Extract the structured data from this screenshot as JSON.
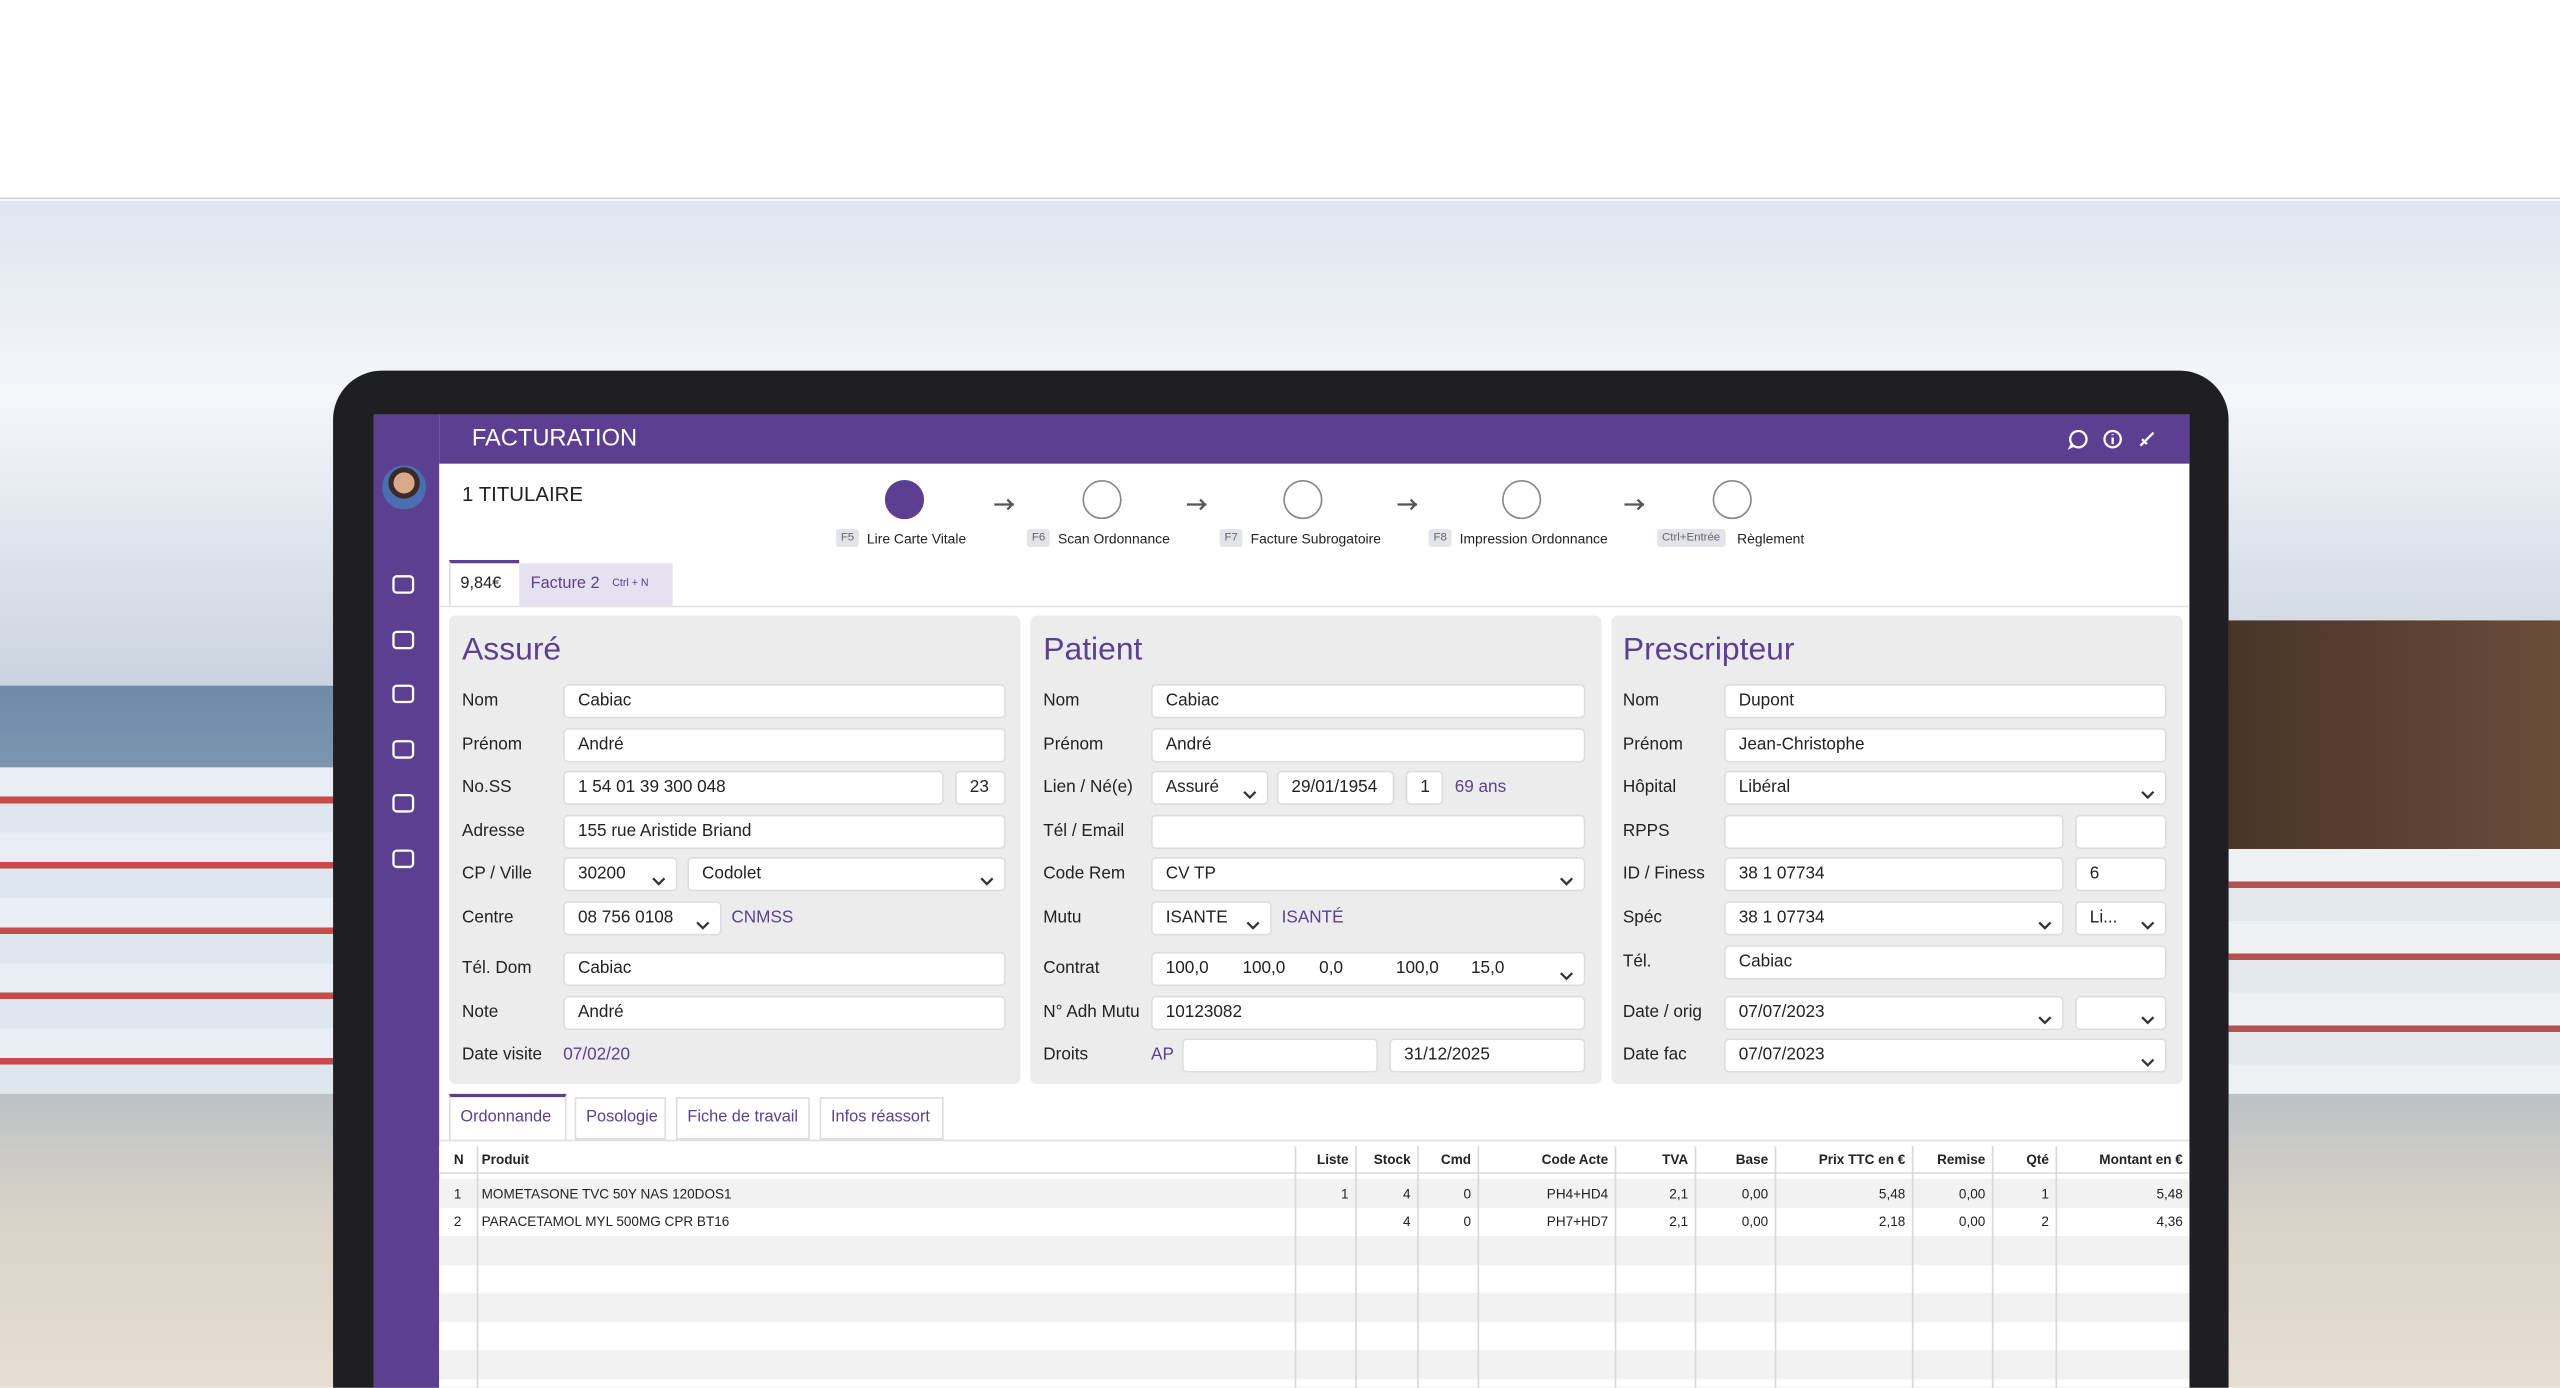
{
  "header": {
    "title": "FACTURATION"
  },
  "titulaire": "1 TITULAIRE",
  "steps": [
    {
      "key": "F5",
      "label": "Lire Carte Vitale"
    },
    {
      "key": "F6",
      "label": "Scan Ordonnance"
    },
    {
      "key": "F7",
      "label": "Facture Subrogatoire"
    },
    {
      "key": "F8",
      "label": "Impression Ordonnance"
    },
    {
      "key": "Ctrl+Entrée",
      "label": "Règlement"
    }
  ],
  "tabs": [
    {
      "label": "9,84€"
    },
    {
      "label": "Facture 2",
      "shortcut": "Ctrl + N"
    }
  ],
  "panels": [
    {
      "title": "Assuré",
      "rows": [
        {
          "label": "Nom",
          "items": [
            "Cabiac"
          ]
        },
        {
          "label": "Prénom",
          "items": [
            "André"
          ]
        },
        {
          "label": "No.SS",
          "items": [
            "1 54 01 39 300 048",
            "23"
          ]
        },
        {
          "label": "Adresse",
          "items": [
            "155 rue Aristide Briand"
          ]
        },
        {
          "label": "CP / Ville",
          "items": [
            "30200",
            "Codolet"
          ]
        },
        {
          "label": "Centre",
          "items": [
            "08 756 0108",
            "CNMSS"
          ]
        },
        {
          "label": "Tél. Dom",
          "items": [
            "Cabiac"
          ]
        },
        {
          "label": "Note",
          "items": [
            "André"
          ]
        },
        {
          "label": "Date visite",
          "items": [
            "07/02/20"
          ]
        }
      ]
    },
    {
      "title": "Patient",
      "rows": [
        {
          "label": "Nom",
          "items": [
            "Cabiac"
          ]
        },
        {
          "label": "Prénom",
          "items": [
            "André"
          ]
        },
        {
          "label": "Lien / Né(e)",
          "items": [
            "Assuré",
            "29/01/1954",
            "1",
            "69 ans"
          ]
        },
        {
          "label": "Tél / Email",
          "items": [
            null
          ]
        },
        {
          "label": "Code Rem",
          "items": [
            "CV TP"
          ]
        },
        {
          "label": "Mutu",
          "items": [
            "ISANTE",
            "ISANTÉ"
          ]
        },
        {
          "label": "Contrat",
          "items": [
            "100,0",
            "100,0",
            "0,0",
            "100,0",
            "15,0"
          ]
        },
        {
          "label": "N° Adh Mutu",
          "items": [
            "10123082"
          ]
        },
        {
          "label": "Droits",
          "items": [
            "AP",
            null,
            "31/12/2025"
          ]
        }
      ]
    },
    {
      "title": "Prescripteur",
      "rows": [
        {
          "label": "Nom",
          "items": [
            "Dupont"
          ]
        },
        {
          "label": "Prénom",
          "items": [
            "Jean-Christophe"
          ]
        },
        {
          "label": "Hôpital",
          "items": [
            "Libéral"
          ]
        },
        {
          "label": "RPPS",
          "items": [
            null,
            null
          ]
        },
        {
          "label": "ID / Finess",
          "items": [
            "38 1 07734",
            "6"
          ]
        },
        {
          "label": "Spéc",
          "items": [
            "38 1 07734",
            "Li..."
          ]
        },
        {
          "label": "Tél.",
          "items": [
            "Cabiac"
          ]
        },
        {
          "label": "Date / orig",
          "items": [
            "07/07/2023",
            null
          ]
        },
        {
          "label": "Date fac",
          "items": [
            "07/07/2023"
          ]
        }
      ]
    }
  ],
  "bottom_tabs": [
    "Ordonnande",
    "Posologie",
    "Fiche de travail",
    "Infos réassort"
  ],
  "table": {
    "columns": [
      "N",
      "Produit",
      "Liste",
      "Stock",
      "Cmd",
      "Code Acte",
      "TVA",
      "Base",
      "Prix TTC en €",
      "Remise",
      "Qté",
      "Montant en €"
    ],
    "rows": [
      [
        "1",
        "MOMETASONE TVC 50Y NAS 120DOS1",
        "1",
        "4",
        "0",
        "PH4+HD4",
        "2,1",
        "0,00",
        "5,48",
        "0,00",
        "1",
        "5,48"
      ],
      [
        "2",
        "PARACETAMOL MYL 500MG CPR BT16",
        null,
        "4",
        "0",
        "PH7+HD7",
        "2,1",
        "0,00",
        "2,18",
        "0,00",
        "2",
        "4,36"
      ]
    ]
  }
}
